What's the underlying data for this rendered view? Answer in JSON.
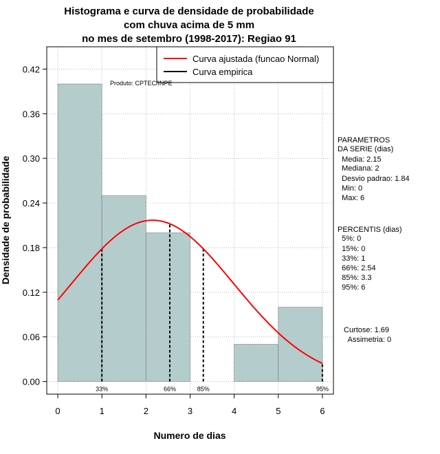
{
  "chart_data": {
    "type": "bar",
    "title_lines": [
      "Histograma e curva de densidade de probabilidade",
      "com chuva acima de 5 mm",
      "no mes de setembro (1998-2017): Regiao 91"
    ],
    "xlabel": "Numero de dias",
    "ylabel": "Densidade de probabilidade",
    "xlim": [
      -0.25,
      6.25
    ],
    "ylim": [
      -0.017,
      0.45
    ],
    "x_ticks": [
      "0",
      "1",
      "2",
      "3",
      "4",
      "5",
      "6"
    ],
    "y_ticks": [
      "0.00",
      "0.06",
      "0.12",
      "0.18",
      "0.24",
      "0.30",
      "0.36",
      "0.42"
    ],
    "bins": [
      {
        "start": 0,
        "end": 1,
        "density": 0.4
      },
      {
        "start": 1,
        "end": 2,
        "density": 0.25
      },
      {
        "start": 2,
        "end": 3,
        "density": 0.2
      },
      {
        "start": 3,
        "end": 4,
        "density": 0.0
      },
      {
        "start": 4,
        "end": 5,
        "density": 0.05
      },
      {
        "start": 5,
        "end": 6,
        "density": 0.1
      }
    ],
    "fitted_curve": {
      "label": "Curva ajustada (funcao Normal)",
      "mean": 2.15,
      "sd": 1.84,
      "color": "#ff0000"
    },
    "empirical_curve": {
      "label": "Curva empirica",
      "color": "#000000"
    },
    "bar_color": "#b5cccc",
    "percentile_lines": [
      {
        "x": 1,
        "label": "33%"
      },
      {
        "x": 2.54,
        "label": "66%"
      },
      {
        "x": 3.3,
        "label": "85%"
      },
      {
        "x": 6,
        "label": "95%"
      }
    ],
    "source_note": "Produto: CPTEC/INPE"
  },
  "side_panel": {
    "params_lines": [
      "PARAMETROS",
      "DA SERIE (dias)",
      "  Media: 2.15",
      "  Mediana: 2",
      "  Desvio padrao: 1.84",
      "  Min: 0",
      "  Max: 6"
    ],
    "percentis_lines": [
      "PERCENTIS (dias)",
      "  5%: 0",
      "  15%: 0",
      "  33%: 1",
      "  66%: 2.54",
      "  85%: 3.3",
      "  95%: 6"
    ],
    "shape_lines": [
      "Curtose: 1.69",
      "  Assimetria: 0"
    ]
  }
}
